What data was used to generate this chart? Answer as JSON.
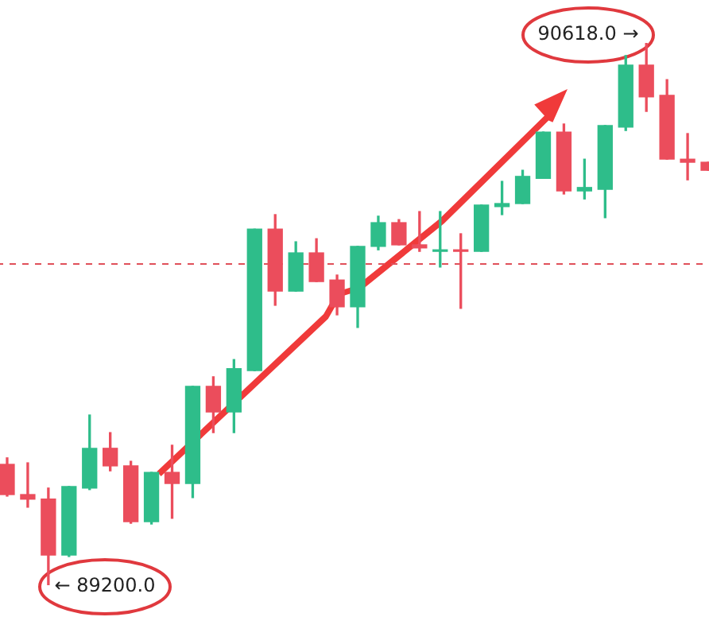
{
  "chart_data": {
    "type": "candlestick",
    "categories": [
      null,
      null,
      null,
      null,
      null,
      null,
      null,
      null,
      null,
      null,
      null,
      null,
      null,
      null,
      null,
      null,
      null,
      null,
      null,
      null,
      null,
      null,
      null,
      null,
      null,
      null,
      null,
      null,
      null,
      null,
      null,
      null,
      null,
      null,
      null
    ],
    "ohlc": [
      [
        89516,
        89533,
        89433,
        89437
      ],
      [
        89437,
        89520,
        89404,
        89425
      ],
      [
        89425,
        89454,
        89200,
        89279
      ],
      [
        89279,
        89458,
        89275,
        89458
      ],
      [
        89454,
        89645,
        89450,
        89558
      ],
      [
        89558,
        89599,
        89499,
        89512
      ],
      [
        89512,
        89524,
        89362,
        89366
      ],
      [
        89366,
        89495,
        89360,
        89495
      ],
      [
        89495,
        89566,
        89375,
        89466
      ],
      [
        89466,
        89720,
        89429,
        89720
      ],
      [
        89720,
        89745,
        89599,
        89653
      ],
      [
        89653,
        89790,
        89599,
        89766
      ],
      [
        89761,
        90131,
        89761,
        90131
      ],
      [
        90131,
        90169,
        89932,
        89969
      ],
      [
        89969,
        90098,
        89969,
        90069
      ],
      [
        90069,
        90106,
        89994,
        89994
      ],
      [
        89998,
        90011,
        89907,
        89928
      ],
      [
        89928,
        90086,
        89874,
        90086
      ],
      [
        90086,
        90165,
        90077,
        90148
      ],
      [
        90148,
        90156,
        90090,
        90090
      ],
      [
        90090,
        90177,
        90073,
        90082
      ],
      [
        90073,
        90177,
        90032,
        90077
      ],
      [
        90077,
        90119,
        89924,
        90073
      ],
      [
        90073,
        90194,
        90073,
        90194
      ],
      [
        90190,
        90256,
        90169,
        90198
      ],
      [
        90198,
        90285,
        90198,
        90269
      ],
      [
        90264,
        90385,
        90264,
        90385
      ],
      [
        90385,
        90406,
        90223,
        90231
      ],
      [
        90231,
        90314,
        90210,
        90240
      ],
      [
        90235,
        90402,
        90161,
        90402
      ],
      [
        90398,
        90585,
        90389,
        90560
      ],
      [
        90560,
        90618,
        90439,
        90477
      ],
      [
        90481,
        90522,
        90314,
        90314
      ],
      [
        90314,
        90381,
        90260,
        90306
      ],
      [
        90306,
        90306,
        90285,
        90285
      ]
    ],
    "colors": [
      "#eb4d5c",
      "#eb4d5c",
      "#eb4d5c",
      "#2ebd8a",
      "#2ebd8a",
      "#eb4d5c",
      "#eb4d5c",
      "#2ebd8a",
      "#eb4d5c",
      "#2ebd8a",
      "#eb4d5c",
      "#2ebd8a",
      "#2ebd8a",
      "#eb4d5c",
      "#2ebd8a",
      "#eb4d5c",
      "#eb4d5c",
      "#2ebd8a",
      "#2ebd8a",
      "#eb4d5c",
      "#eb4d5c",
      "#2ebd8a",
      "#eb4d5c",
      "#2ebd8a",
      "#2ebd8a",
      "#2ebd8a",
      "#2ebd8a",
      "#eb4d5c",
      "#2ebd8a",
      "#2ebd8a",
      "#2ebd8a",
      "#eb4d5c",
      "#eb4d5c",
      "#eb4d5c",
      "#eb4d5c"
    ],
    "ref_lines": [
      {
        "axis": "y",
        "value": 90040,
        "color": "#e0505a",
        "line_style": "dashed"
      }
    ],
    "annotations": [
      "90618.0 →",
      "← 89200.0"
    ]
  }
}
